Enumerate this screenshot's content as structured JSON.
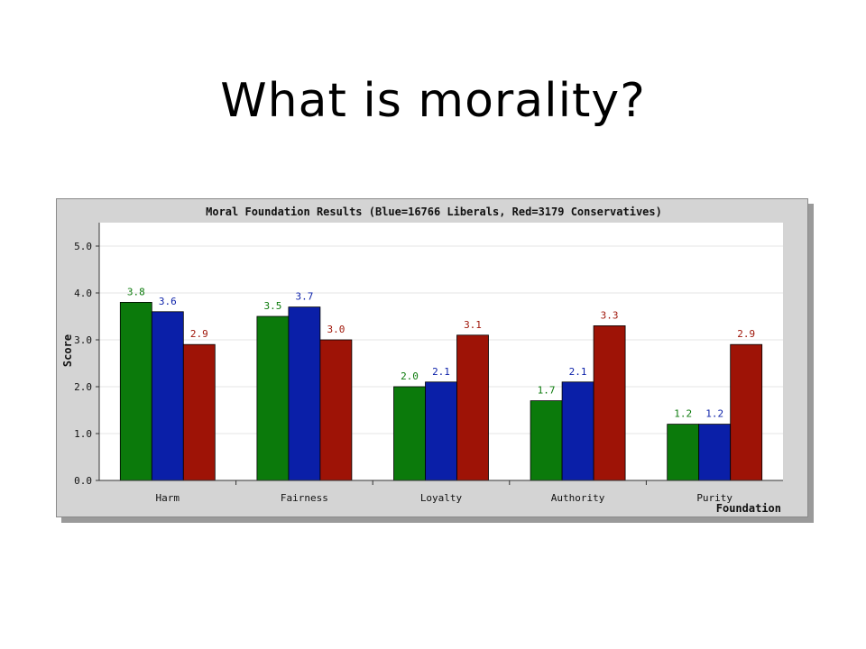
{
  "slide": {
    "title": "What is morality?"
  },
  "colors": {
    "green": "#0b7a0b",
    "blue": "#0a1fa8",
    "red": "#9e1306",
    "plot_bg": "#ffffff",
    "panel_bg": "#d4d4d4",
    "grid": "#e6e6e6"
  },
  "chart_data": {
    "type": "bar",
    "title": "Moral Foundation Results (Blue=16766 Liberals, Red=3179 Conservatives)",
    "xlabel": "Foundation",
    "ylabel": "Score",
    "ylim": [
      0,
      5
    ],
    "yticks": [
      "0.0",
      "1.0",
      "2.0",
      "3.0",
      "4.0",
      "5.0"
    ],
    "grid": true,
    "categories": [
      "Harm",
      "Fairness",
      "Loyalty",
      "Authority",
      "Purity"
    ],
    "series": [
      {
        "color": "#0b7a0b",
        "values": [
          3.8,
          3.5,
          2.0,
          1.7,
          1.2
        ],
        "labels": [
          "3.8",
          "3.5",
          "2.0",
          "1.7",
          "1.2"
        ]
      },
      {
        "color": "#0a1fa8",
        "values": [
          3.6,
          3.7,
          2.1,
          2.1,
          1.2
        ],
        "labels": [
          "3.6",
          "3.7",
          "2.1",
          "2.1",
          "1.2"
        ]
      },
      {
        "color": "#9e1306",
        "values": [
          2.9,
          3.0,
          3.1,
          3.3,
          2.9
        ],
        "labels": [
          "2.9",
          "3.0",
          "3.1",
          "3.3",
          "2.9"
        ]
      }
    ]
  }
}
